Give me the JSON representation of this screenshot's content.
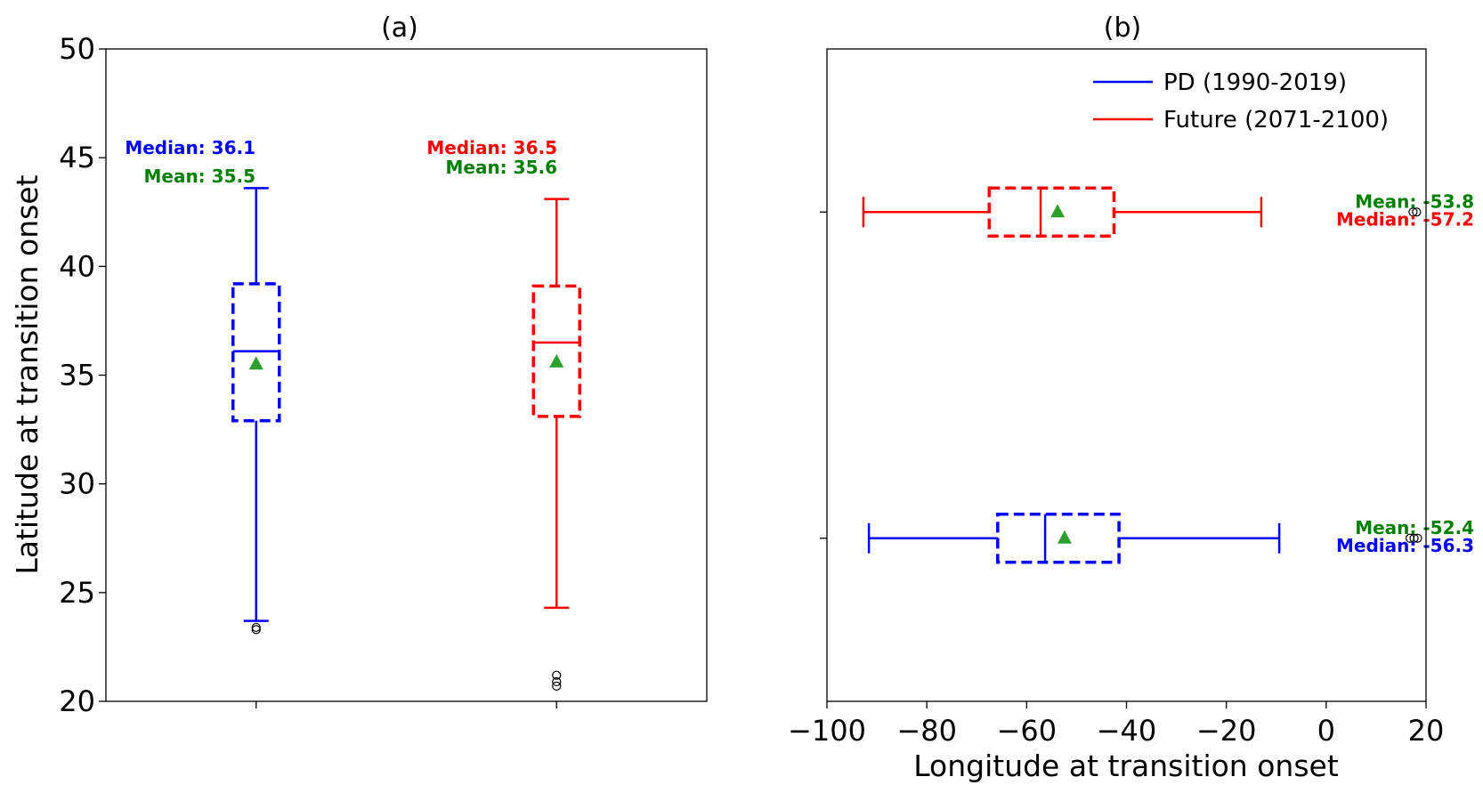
{
  "colors": {
    "pd": "#0000ff",
    "future": "#ff0000",
    "mean": "#2ca02c",
    "annotation_mean": "#008000"
  },
  "chart_data": [
    {
      "type": "box",
      "orientation": "vertical",
      "title": "(a)",
      "xlabel": "",
      "ylabel": "Latitude at transition onset",
      "ylim": [
        20,
        50
      ],
      "yticks": [
        "20",
        "25",
        "30",
        "35",
        "40",
        "45",
        "50"
      ],
      "grid": false,
      "boxes": [
        {
          "series": "PD (1990-2019)",
          "color": "#0000ff",
          "position": 1,
          "whisker_low": 23.7,
          "q1": 32.9,
          "median": 36.1,
          "q3": 39.2,
          "whisker_high": 43.6,
          "mean": 35.5,
          "outliers": [
            23.3,
            23.4
          ],
          "median_label": "Median: 36.1",
          "mean_label": "Mean: 35.5"
        },
        {
          "series": "Future (2071-2100)",
          "color": "#ff0000",
          "position": 2,
          "whisker_low": 24.3,
          "q1": 33.1,
          "median": 36.5,
          "q3": 39.1,
          "whisker_high": 43.1,
          "mean": 35.6,
          "outliers": [
            20.7,
            20.9,
            21.2
          ],
          "median_label": "Median: 36.5",
          "mean_label": "Mean: 35.6"
        }
      ]
    },
    {
      "type": "box",
      "orientation": "horizontal",
      "title": "(b)",
      "xlabel": "Longitude at transition onset",
      "ylabel": "",
      "xlim": [
        -100,
        20
      ],
      "xticks": [
        "−100",
        "−80",
        "−60",
        "−40",
        "−20",
        "0",
        "20"
      ],
      "grid": false,
      "legend": {
        "placement": "top-right",
        "entries": [
          "PD (1990-2019)",
          "Future (2071-2100)"
        ]
      },
      "boxes": [
        {
          "series": "PD (1990-2019)",
          "color": "#0000ff",
          "position": 1,
          "whisker_low": -91.6,
          "q1": -65.8,
          "median": -56.3,
          "q3": -41.5,
          "whisker_high": -9.4,
          "mean": -52.4,
          "outliers": [
            16.8,
            17.6,
            18.3
          ],
          "median_label": "Median: -56.3",
          "mean_label": "Mean: -52.4"
        },
        {
          "series": "Future (2071-2100)",
          "color": "#ff0000",
          "position": 2,
          "whisker_low": -92.7,
          "q1": -67.5,
          "median": -57.2,
          "q3": -42.5,
          "whisker_high": -13.0,
          "mean": -53.8,
          "outliers": [
            17.4,
            18.1
          ],
          "median_label": "Median: -57.2",
          "mean_label": "Mean: -53.8"
        }
      ]
    }
  ]
}
